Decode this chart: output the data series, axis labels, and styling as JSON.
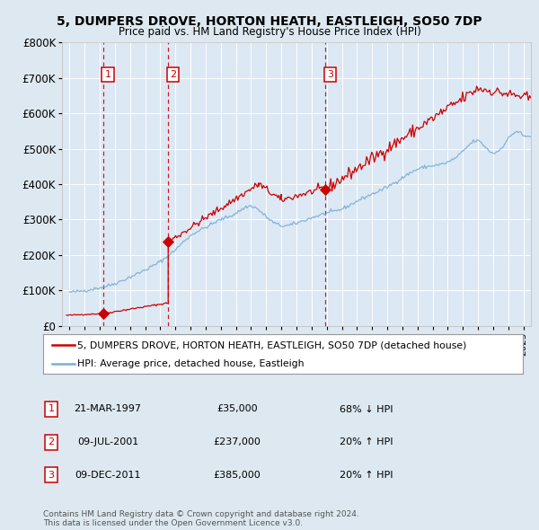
{
  "title": "5, DUMPERS DROVE, HORTON HEATH, EASTLEIGH, SO50 7DP",
  "subtitle": "Price paid vs. HM Land Registry's House Price Index (HPI)",
  "sales": [
    {
      "date": 1997.22,
      "price": 35000,
      "label": "1"
    },
    {
      "date": 2001.52,
      "price": 237000,
      "label": "2"
    },
    {
      "date": 2011.93,
      "price": 385000,
      "label": "3"
    }
  ],
  "sale_annotations": [
    {
      "num": "1",
      "date": "21-MAR-1997",
      "price": "£35,000",
      "hpi": "68% ↓ HPI"
    },
    {
      "num": "2",
      "date": "09-JUL-2001",
      "price": "£237,000",
      "hpi": "20% ↑ HPI"
    },
    {
      "num": "3",
      "date": "09-DEC-2011",
      "price": "£385,000",
      "hpi": "20% ↑ HPI"
    }
  ],
  "red_color": "#cc0000",
  "blue_color": "#7aaed6",
  "bg_color": "#dde8f0",
  "plot_bg": "#dce8f4",
  "grid_color": "#ffffff",
  "ylim": [
    0,
    800000
  ],
  "xlim": [
    1994.5,
    2025.5
  ],
  "legend_line1": "5, DUMPERS DROVE, HORTON HEATH, EASTLEIGH, SO50 7DP (detached house)",
  "legend_line2": "HPI: Average price, detached house, Eastleigh",
  "footer": "Contains HM Land Registry data © Crown copyright and database right 2024.\nThis data is licensed under the Open Government Licence v3.0."
}
